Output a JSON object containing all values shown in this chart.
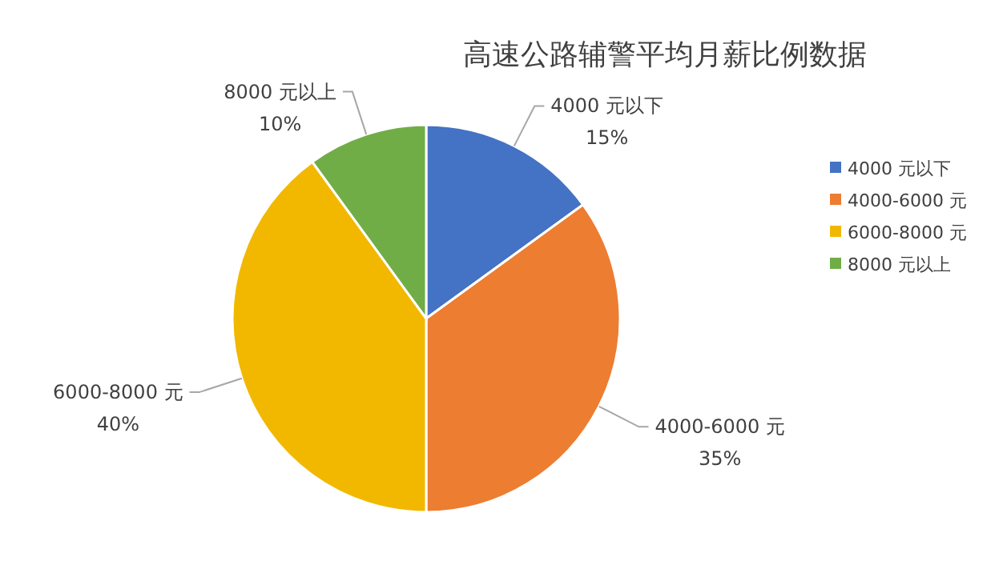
{
  "chart_data": {
    "type": "pie",
    "title": "高速公路辅警平均月薪比例数据",
    "categories": [
      "4000 元以下",
      "4000-6000 元",
      "6000-8000 元",
      "8000 元以上"
    ],
    "values": [
      15,
      35,
      40,
      10
    ],
    "colors": [
      "#4472c4",
      "#ed7d31",
      "#f2b800",
      "#70ad47"
    ],
    "value_labels": [
      "15%",
      "35%",
      "40%",
      "10%"
    ],
    "legend": "right"
  }
}
